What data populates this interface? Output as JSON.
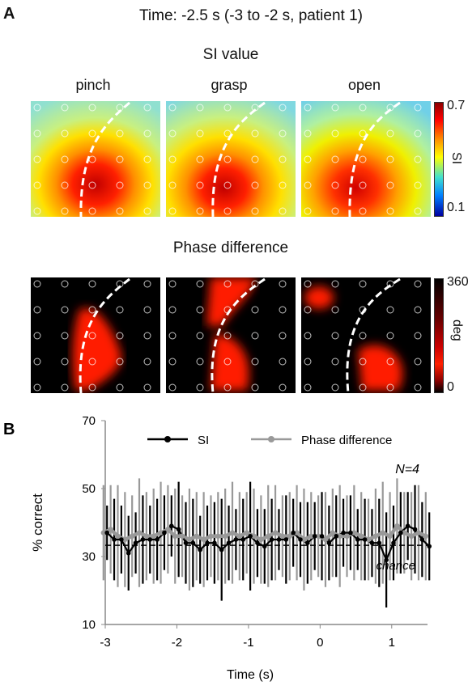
{
  "panel_a": {
    "letter": "A",
    "time_title": "Time: -2.5 s (-3 to -2 s, patient 1)",
    "si_heading": "SI value",
    "phase_heading": "Phase difference",
    "conditions": [
      "pinch",
      "grasp",
      "open"
    ],
    "si_colorbar": {
      "max_label": "0.7",
      "min_label": "0.1",
      "title": "SI"
    },
    "phase_colorbar": {
      "max_label": "360",
      "min_label": "0",
      "title": "deg"
    }
  },
  "chart_data": {
    "type": "line",
    "panel_letter": "B",
    "xlabel": "Time (s)",
    "ylabel": "% correct",
    "xlim": [
      -3,
      1.5
    ],
    "ylim": [
      10,
      70
    ],
    "xticks": [
      -3,
      -2,
      -1,
      0,
      1
    ],
    "yticks": [
      10,
      30,
      50,
      70
    ],
    "legend_position": "top",
    "annotation": "N=4",
    "chance_label": "chance",
    "chance_level": 33.3,
    "series": [
      {
        "name": "SI",
        "color": "#000000",
        "x": [
          -3.0,
          -2.9,
          -2.8,
          -2.7,
          -2.6,
          -2.5,
          -2.4,
          -2.3,
          -2.2,
          -2.1,
          -2.0,
          -1.9,
          -1.8,
          -1.7,
          -1.6,
          -1.5,
          -1.4,
          -1.3,
          -1.2,
          -1.1,
          -1.0,
          -0.9,
          -0.8,
          -0.7,
          -0.6,
          -0.5,
          -0.4,
          -0.3,
          -0.2,
          -0.1,
          0.0,
          0.1,
          0.2,
          0.3,
          0.4,
          0.5,
          0.6,
          0.7,
          0.8,
          0.9,
          1.0,
          1.1,
          1.2,
          1.3,
          1.4,
          1.5
        ],
        "y": [
          37,
          35,
          35,
          31,
          34,
          35,
          35,
          35,
          37,
          39,
          38,
          34,
          34,
          32,
          34,
          34,
          32,
          34,
          35,
          35,
          36,
          34,
          33,
          35,
          35,
          35,
          37,
          35,
          34,
          36,
          36,
          34,
          36,
          37,
          37,
          35,
          35,
          34,
          34,
          29,
          34,
          37,
          39,
          38,
          35,
          33
        ],
        "err": [
          8,
          12,
          10,
          11,
          9,
          13,
          10,
          12,
          11,
          9,
          14,
          12,
          13,
          10,
          11,
          12,
          15,
          11,
          9,
          12,
          16,
          10,
          11,
          12,
          9,
          13,
          10,
          11,
          12,
          10,
          13,
          11,
          12,
          10,
          11,
          9,
          12,
          10,
          13,
          14,
          11,
          12,
          10,
          13,
          11,
          10
        ]
      },
      {
        "name": "Phase difference",
        "color": "#999999",
        "x": [
          -3.0,
          -2.9,
          -2.8,
          -2.7,
          -2.6,
          -2.5,
          -2.4,
          -2.3,
          -2.2,
          -2.1,
          -2.0,
          -1.9,
          -1.8,
          -1.7,
          -1.6,
          -1.5,
          -1.4,
          -1.3,
          -1.2,
          -1.1,
          -1.0,
          -0.9,
          -0.8,
          -0.7,
          -0.6,
          -0.5,
          -0.4,
          -0.3,
          -0.2,
          -0.1,
          0.0,
          0.1,
          0.2,
          0.3,
          0.4,
          0.5,
          0.6,
          0.7,
          0.8,
          0.9,
          1.0,
          1.1,
          1.2,
          1.3,
          1.4,
          1.5
        ],
        "y": [
          37,
          38,
          36,
          35,
          36,
          37,
          36,
          36,
          37,
          38,
          36,
          36,
          35,
          36,
          35,
          36,
          36,
          36,
          37,
          36,
          37,
          36,
          35,
          36,
          37,
          36,
          36,
          37,
          35,
          36,
          36,
          35,
          37,
          36,
          36,
          37,
          36,
          35,
          36,
          37,
          36,
          39,
          37,
          36,
          37,
          36
        ],
        "err": [
          14,
          13,
          15,
          14,
          12,
          16,
          13,
          14,
          15,
          13,
          14,
          12,
          15,
          13,
          14,
          12,
          13,
          14,
          15,
          13,
          12,
          14,
          13,
          15,
          14,
          12,
          13,
          14,
          15,
          13,
          12,
          14,
          13,
          15,
          12,
          14,
          13,
          12,
          14,
          15,
          13,
          14,
          12,
          13,
          14,
          13
        ]
      }
    ]
  }
}
